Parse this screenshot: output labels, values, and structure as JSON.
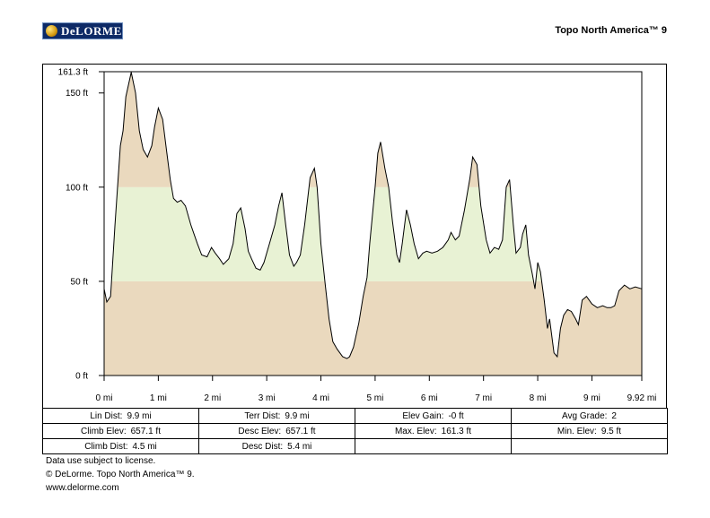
{
  "header": {
    "logo_text": "DeLORME",
    "product_title": "Topo North America™ 9"
  },
  "colors": {
    "low_band": "#ead9be",
    "mid_band": "#e8f2d4",
    "profile_line": "#000000"
  },
  "chart_data": {
    "type": "area",
    "xlabel": "",
    "ylabel": "",
    "x_unit": "mi",
    "y_unit": "ft",
    "xlim": [
      0,
      9.92
    ],
    "ylim": [
      0,
      161.3
    ],
    "x_ticks": [
      {
        "value": 0,
        "label": "0 mi"
      },
      {
        "value": 1,
        "label": "1 mi"
      },
      {
        "value": 2,
        "label": "2 mi"
      },
      {
        "value": 3,
        "label": "3 mi"
      },
      {
        "value": 4,
        "label": "4 mi"
      },
      {
        "value": 5,
        "label": "5 mi"
      },
      {
        "value": 6,
        "label": "6 mi"
      },
      {
        "value": 7,
        "label": "7 mi"
      },
      {
        "value": 8,
        "label": "8 mi"
      },
      {
        "value": 9,
        "label": "9 mi"
      },
      {
        "value": 9.92,
        "label": "9.92 mi"
      }
    ],
    "y_ticks": [
      {
        "value": 0,
        "label": "0 ft"
      },
      {
        "value": 50,
        "label": "50 ft"
      },
      {
        "value": 100,
        "label": "100 ft"
      },
      {
        "value": 150,
        "label": "150 ft"
      },
      {
        "value": 161.3,
        "label": "161.3 ft"
      }
    ],
    "bands": [
      {
        "from": 0,
        "to": 50,
        "color": "#ead9be"
      },
      {
        "from": 50,
        "to": 100,
        "color": "#e8f2d4"
      },
      {
        "from": 100,
        "to": 161.3,
        "color": "#ead9be"
      }
    ],
    "series": [
      {
        "x": [
          0,
          0.05,
          0.12,
          0.2,
          0.3,
          0.35,
          0.4,
          0.5,
          0.58,
          0.65,
          0.72,
          0.8,
          0.88,
          0.93,
          1.0,
          1.08,
          1.15,
          1.22,
          1.28,
          1.35,
          1.42,
          1.5,
          1.6,
          1.72,
          1.8,
          1.9,
          1.98,
          2.05,
          2.13,
          2.2,
          2.3,
          2.38,
          2.45,
          2.52,
          2.6,
          2.66,
          2.72,
          2.8,
          2.88,
          2.95,
          3.05,
          3.15,
          3.22,
          3.28,
          3.35,
          3.42,
          3.5,
          3.55,
          3.62,
          3.7,
          3.8,
          3.88,
          3.93,
          4.0,
          4.08,
          4.15,
          4.22,
          4.3,
          4.4,
          4.48,
          4.53,
          4.6,
          4.7,
          4.78,
          4.85,
          4.9,
          5.0,
          5.05,
          5.1,
          5.18,
          5.25,
          5.32,
          5.4,
          5.45,
          5.5,
          5.58,
          5.65,
          5.72,
          5.8,
          5.88,
          5.95,
          6.05,
          6.15,
          6.25,
          6.35,
          6.4,
          6.48,
          6.55,
          6.65,
          6.75,
          6.8,
          6.88,
          6.95,
          7.05,
          7.12,
          7.2,
          7.28,
          7.35,
          7.42,
          7.48,
          7.55,
          7.6,
          7.68,
          7.72,
          7.78,
          7.83,
          7.9,
          7.95,
          8.0,
          8.05,
          8.12,
          8.18,
          8.22,
          8.3,
          8.36,
          8.42,
          8.48,
          8.55,
          8.62,
          8.7,
          8.75,
          8.82,
          8.9,
          9.0,
          9.1,
          9.2,
          9.28,
          9.35,
          9.42,
          9.5,
          9.6,
          9.7,
          9.8,
          9.92
        ],
        "y": [
          46,
          39,
          42,
          80,
          122,
          130,
          148,
          161,
          150,
          130,
          120,
          116,
          122,
          132,
          142,
          136,
          120,
          104,
          94,
          92,
          93,
          90,
          80,
          70,
          64,
          63,
          68,
          65,
          62,
          59,
          62,
          70,
          86,
          89,
          78,
          66,
          62,
          57,
          56,
          60,
          70,
          80,
          90,
          97,
          80,
          64,
          58,
          60,
          64,
          80,
          105,
          110,
          100,
          70,
          48,
          30,
          18,
          14,
          10,
          9,
          10,
          15,
          28,
          42,
          52,
          70,
          100,
          118,
          124,
          110,
          100,
          82,
          64,
          60,
          70,
          88,
          80,
          70,
          62,
          65,
          66,
          65,
          66,
          68,
          72,
          76,
          72,
          74,
          88,
          105,
          116,
          112,
          90,
          72,
          65,
          68,
          67,
          72,
          100,
          104,
          80,
          65,
          68,
          75,
          80,
          64,
          54,
          46,
          60,
          55,
          40,
          25,
          30,
          12,
          10,
          25,
          32,
          35,
          34,
          30,
          27,
          40,
          42,
          38,
          36,
          37,
          36,
          36,
          37,
          45,
          48,
          46,
          47,
          46
        ]
      }
    ]
  },
  "stats": {
    "rows": [
      [
        {
          "label": "Lin Dist:",
          "value": "9.9 mi"
        },
        {
          "label": "Terr Dist:",
          "value": "9.9 mi"
        },
        {
          "label": "Elev Gain:",
          "value": "-0 ft"
        },
        {
          "label": "Avg Grade:",
          "value": "2"
        }
      ],
      [
        {
          "label": "Climb Elev:",
          "value": "657.1 ft"
        },
        {
          "label": "Desc Elev:",
          "value": "657.1 ft"
        },
        {
          "label": "Max. Elev:",
          "value": "161.3 ft"
        },
        {
          "label": "Min. Elev:",
          "value": "9.5 ft"
        }
      ],
      [
        {
          "label": "Climb Dist:",
          "value": "4.5 mi"
        },
        {
          "label": "Desc Dist:",
          "value": "5.4 mi"
        },
        {
          "label": "",
          "value": ""
        },
        {
          "label": "",
          "value": ""
        }
      ]
    ]
  },
  "footer": {
    "license": "Data use subject to license.",
    "copyright": "© DeLorme. Topo North America™ 9.",
    "website": "www.delorme.com"
  }
}
